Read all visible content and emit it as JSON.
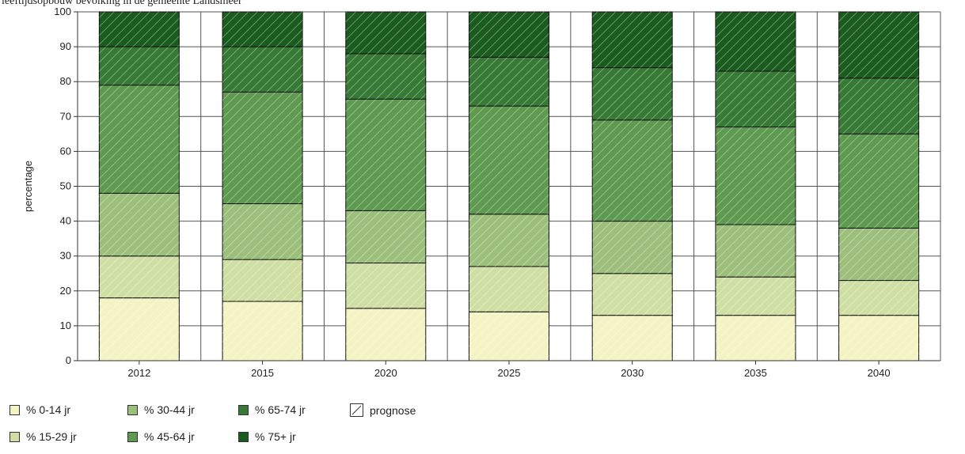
{
  "caption": "leeftijdsopbouw bevolking in de gemeente Landsmeer",
  "chart_data": {
    "type": "bar",
    "stacked": true,
    "ylabel": "percentage",
    "ylim": [
      0,
      100
    ],
    "yticks": [
      0,
      10,
      20,
      30,
      40,
      50,
      60,
      70,
      80,
      90,
      100
    ],
    "grid": true,
    "legend_position": "bottom",
    "categories": [
      "2012",
      "2015",
      "2020",
      "2025",
      "2030",
      "2035",
      "2040"
    ],
    "series": [
      {
        "name": "% 0-14 jr",
        "color": "#f3f3c4",
        "values": [
          18,
          17,
          15,
          14,
          13,
          13,
          13
        ]
      },
      {
        "name": "% 15-29 jr",
        "color": "#cfdfa4",
        "values": [
          12,
          12,
          13,
          13,
          12,
          11,
          10
        ]
      },
      {
        "name": "% 30-44 jr",
        "color": "#9cbf7c",
        "values": [
          18,
          16,
          15,
          15,
          15,
          15,
          15
        ]
      },
      {
        "name": "% 45-64 jr",
        "color": "#5e9a4f",
        "values": [
          31,
          32,
          32,
          31,
          29,
          28,
          27
        ]
      },
      {
        "name": "% 65-74 jr",
        "color": "#377a35",
        "values": [
          11,
          13,
          13,
          14,
          15,
          16,
          16
        ]
      },
      {
        "name": "% 75+ jr",
        "color": "#1a5c1e",
        "values": [
          10,
          10,
          12,
          13,
          16,
          17,
          19
        ]
      }
    ],
    "prognose_label": "prognose"
  },
  "legend": {
    "items": [
      {
        "label": "% 0-14 jr",
        "color": "#f3f3c4",
        "icon": "swatch"
      },
      {
        "label": "% 30-44 jr",
        "color": "#9cbf7c",
        "icon": "swatch"
      },
      {
        "label": "% 65-74 jr",
        "color": "#377a35",
        "icon": "swatch"
      },
      {
        "label": "prognose",
        "color": "#ffffff",
        "icon": "hatch-swatch"
      },
      {
        "label": "% 15-29 jr",
        "color": "#cfdfa4",
        "icon": "swatch"
      },
      {
        "label": "% 45-64 jr",
        "color": "#5e9a4f",
        "icon": "swatch"
      },
      {
        "label": "% 75+ jr",
        "color": "#1a5c1e",
        "icon": "swatch"
      }
    ]
  }
}
